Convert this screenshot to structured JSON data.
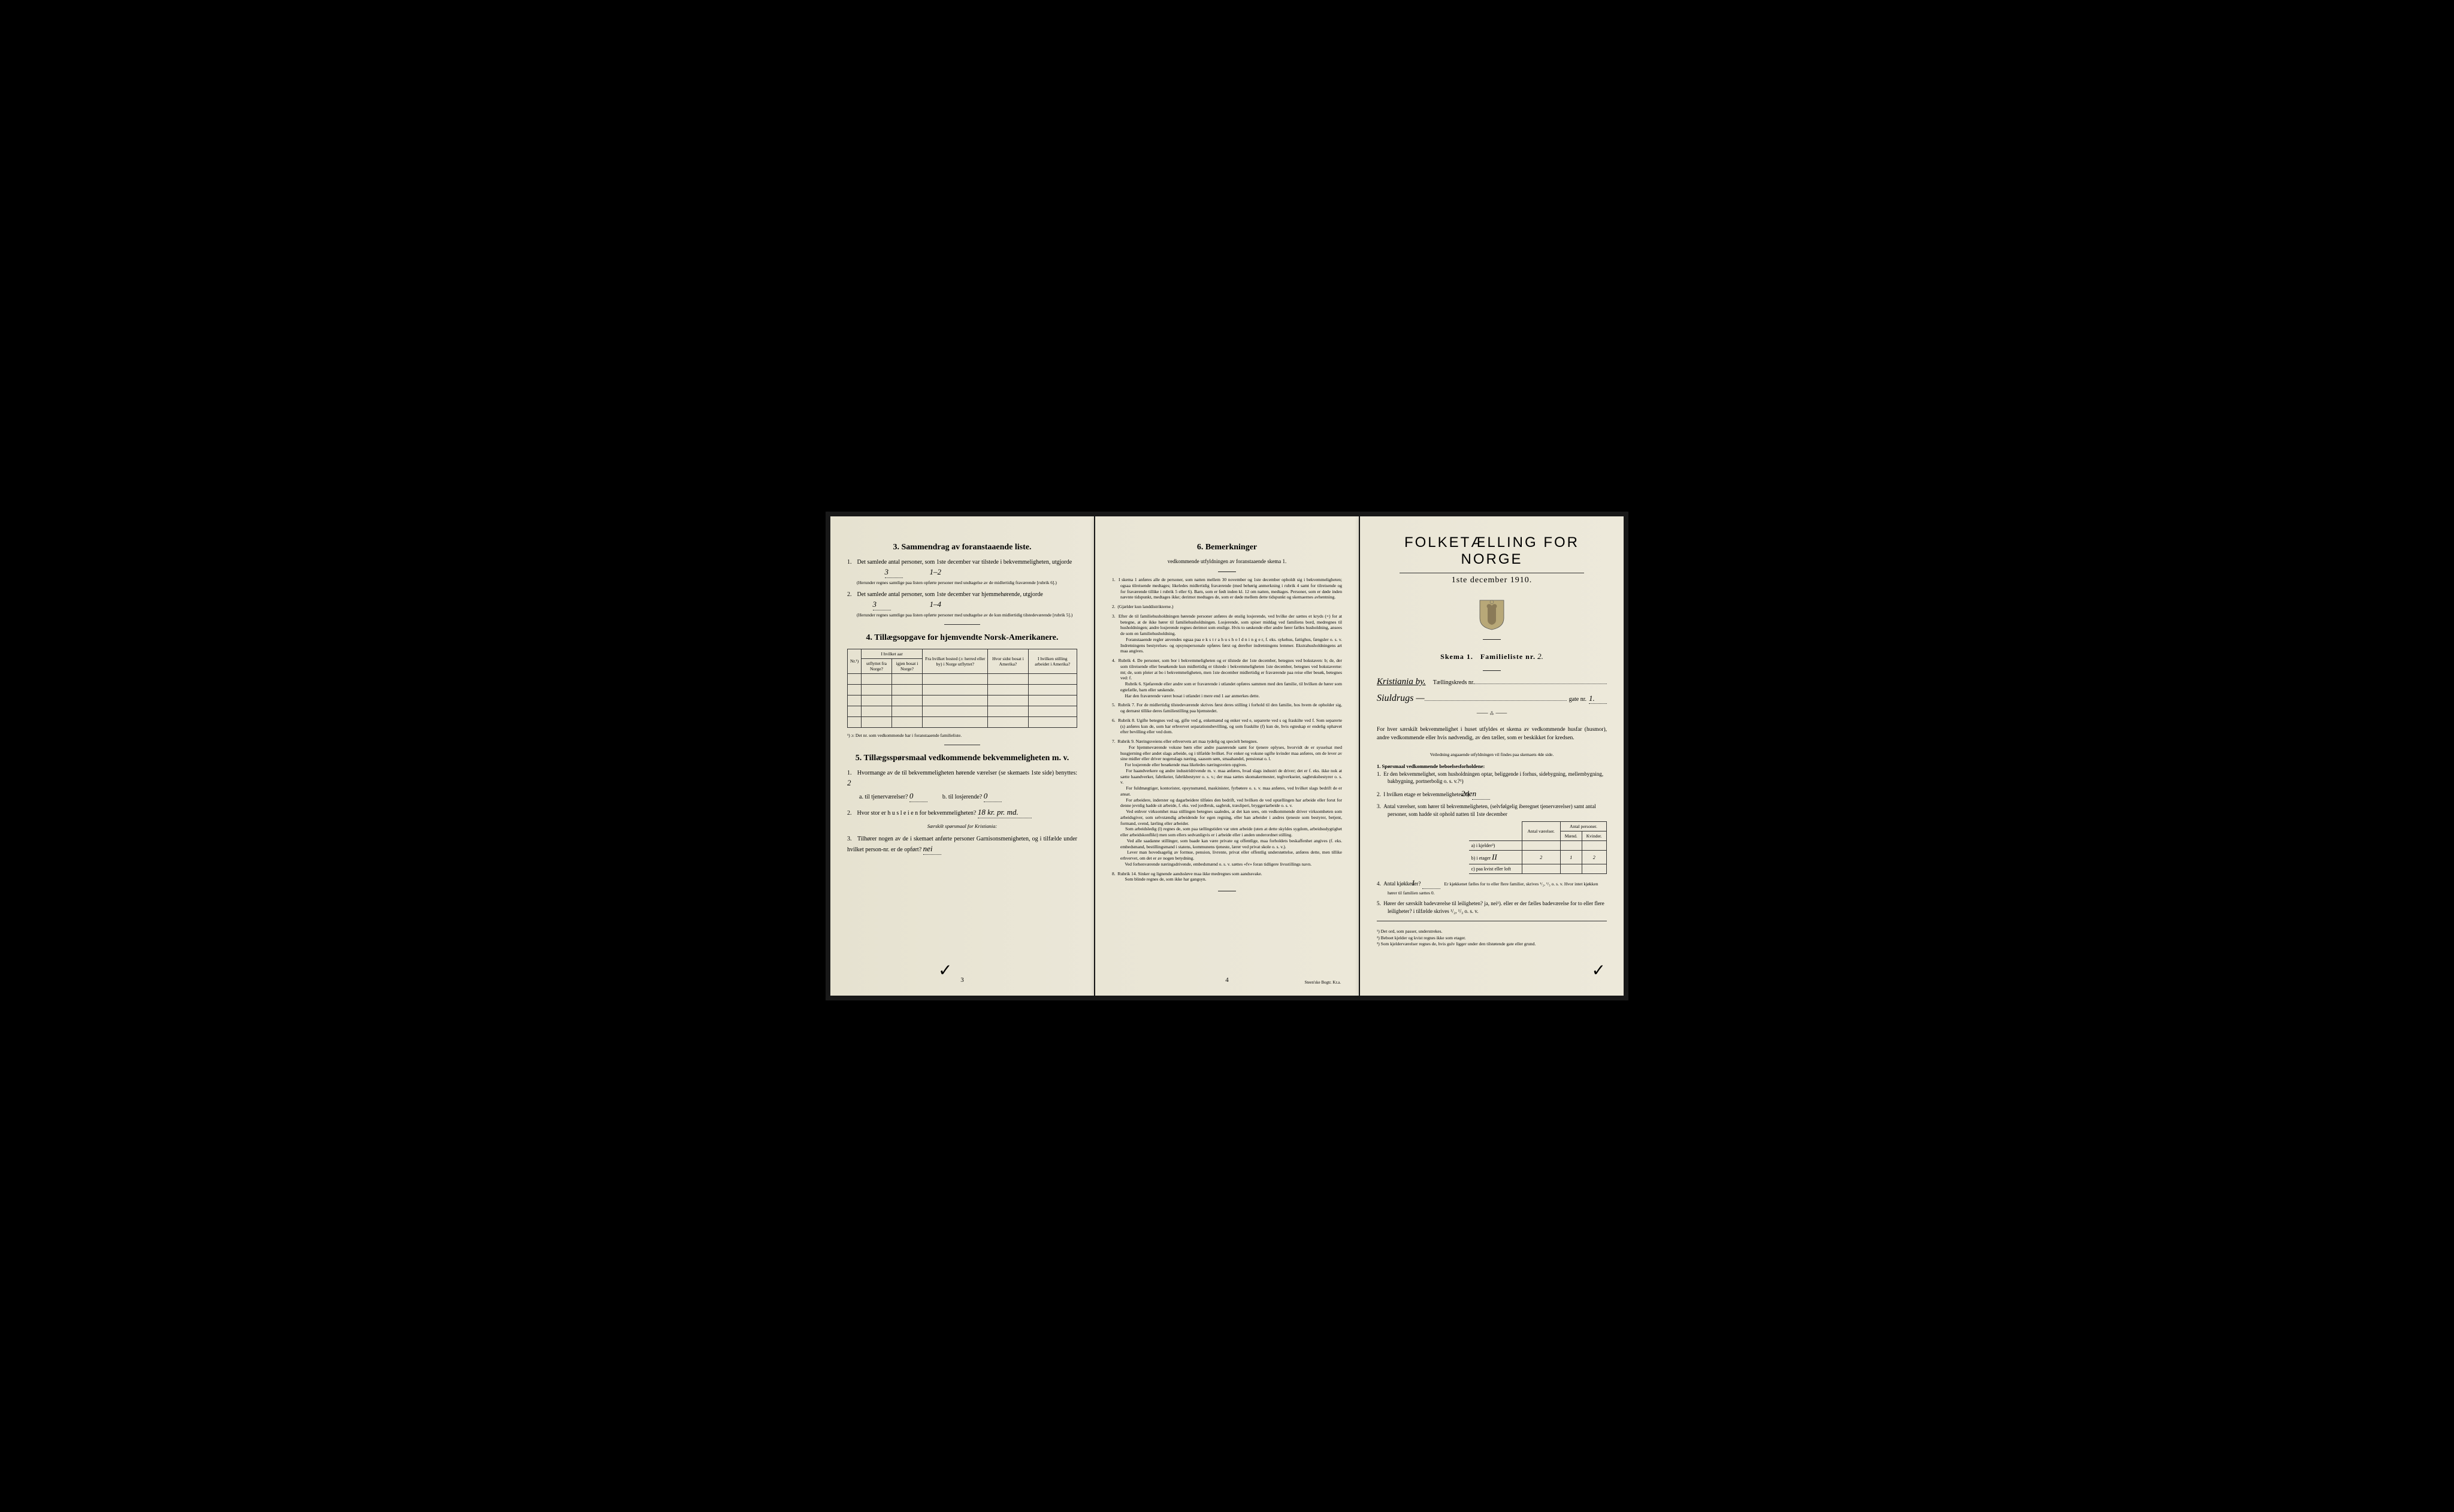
{
  "page_left": {
    "section3": {
      "title": "3.   Sammendrag av foranstaaende liste.",
      "item1": {
        "text": "Det samlede antal personer, som 1ste december var tilstede i bekvemmeligheten, utgjorde",
        "value": "3",
        "annotation": "1–2",
        "sub": "(Herunder regnes samtlige paa listen opførte personer med undtagelse av de midlertidig fraværende [rubrik 6].)"
      },
      "item2": {
        "text": "Det samlede antal personer, som 1ste december var hjemmehørende, utgjorde",
        "value": "3",
        "annotation": "1–4",
        "sub": "(Herunder regnes samtlige paa listen opførte personer med undtagelse av de kun midlertidig tilstedeværende [rubrik 5].)"
      }
    },
    "section4": {
      "title": "4.   Tillægsopgave for hjemvendte Norsk-Amerikanere.",
      "headers": {
        "nr": "Nr.¹)",
        "group1": "I hvilket aar",
        "utflyttet": "utflyttet fra Norge?",
        "igjen": "igjen bosat i Norge?",
        "bosted": "Fra hvilket bosted (ɔ: herred eller by) i Norge utflyttet?",
        "sidst": "Hvor sidst bosat i Amerika?",
        "stilling": "I hvilken stilling arbeidet i Amerika?"
      },
      "footnote": "¹) ɔ: Det nr. som vedkommende har i foranstaaende familieliste."
    },
    "section5": {
      "title": "5.   Tillægsspørsmaal vedkommende bekvemmeligheten m. v.",
      "q1": {
        "text": "Hvormange av de til bekvemmeligheten hørende værelser (se skemaets 1ste side) benyttes:",
        "value": "2",
        "a_label": "a.  til tjenerværelser?",
        "a_value": "0",
        "b_label": "b.  til losjerende?",
        "b_value": "0"
      },
      "q2": {
        "text": "Hvor stor er h u s l e i e n for bekvemmeligheten?",
        "value": "18 kr. pr. md."
      },
      "sub_title": "Særskilt spørsmaal for Kristiania:",
      "q3": {
        "text": "Tilhører nogen av de i skemaet anførte personer Garnisonsmenigheten, og i tilfælde under hvilket person-nr. er de opført?",
        "value": "nei"
      }
    },
    "page_num": "3"
  },
  "page_middle": {
    "section6": {
      "title": "6.   Bemerkninger",
      "subtitle": "vedkommende utfyldningen av foranstaaende skema 1.",
      "items": [
        "I skema 1 anføres alle de personer, som natten mellem 30 november og 1ste december opholdt sig i bekvemmeligheten; ogsaa tilreisende medtages; likeledes midlertidig fraværende (med behørig anmerkning i rubrik 4 samt for tilreisende og for fraværende tillike i rubrik 5 eller 6). Barn, som er født inden kl. 12 om natten, medtages. Personer, som er døde inden nævnte tidspunkt, medtages ikke; derimot medtages de, som er døde mellem dette tidspunkt og skemaernes avhentning.",
        "(Gjælder kun landdistrikterne.)",
        "Efter de til familiehusholdningen hørende personer anføres de enslig losjerende, ved hvilke der sættes et kryds (×) for at betegne, at de ikke hører til familiehusholdningen. Losjerende, som spiser middag ved familiens bord, medregnes til husholdningen; andre losjerende regnes derimot som enslige. Hvis to søskende eller andre fører fælles husholdning, ansees de som en familiehusholdning.\n   Foranstaaende regler anvendes ogsaa paa e k s t r a h u s h o l d n i n g e r, f. eks. sykehus, fattighus, fængsler o. s. v. Indretningens bestyrelses- og opsynspersonale opføres først og derefter indretningens lemmer. Ekstrahusholdningens art maa angives.",
        "Rubrik 4. De personer, som bor i bekvemmeligheten og er tilstede der 1ste december, betegnes ved bokstaven: b; de, der som tilreisende eller besøkende kun midlertidig er tilstede i bekvemmeligheten 1ste december, betegnes ved bokstaverne: mt; de, som pleier at bo i bekvemmeligheten, men 1ste december midlertidig er fraværende paa reise eller besøk, betegnes ved: f.\n   Rubrik 6. Sjøfarende eller andre som er fraværende i utlandet opføres sammen med den familie, til hvilken de hører som egtefælle, barn eller søskende.\n   Har den fraværende været bosat i utlandet i mere end 1 aar anmerkes dette.",
        "Rubrik 7. For de midlertidig tilstedeværende skrives først deres stilling i forhold til den familie, hos hvem de opholder sig, og dernæst tillike deres familiestilling paa hjemstedet.",
        "Rubrik 8. Ugifte betegnes ved ug, gifte ved g, enkemænd og enker ved e, separerte ved s og fraskilte ved f. Som separerte (s) anføres kun de, som har erhvervet separationsbevilling, og som fraskilte (f) kun de, hvis egteskap er endelig ophævet efter bevilling eller ved dom.",
        "Rubrik 9. Næringsveiens eller erhvervets art maa tydelig og specielt betegnes.\n   For hjemmeværende voksne børn eller andre paarørende samt for tjenere oplyses, hvorvidt de er sysselsat med husgjerning eller andet slags arbeide, og i tilfælde hvilket. For enker og voksne ugifte kvinder maa anføres, om de lever av sine midler eller driver nogenslags næring, saasom søm, smaahandel, pensionat o. l.\n   For losjerende eller besøkende maa likeledes næringsveien opgives.\n   For haandverkere og andre industridrivende m. v. maa anføres, hvad slags industri de driver; det er f. eks. ikke nok at sætte haandverker, fabrikeier, fabrikbestyrer o. s. v.; der maa sættes skomakermester, teglverkseier, sagbruksbestyrer o. s. v.\n   For fuldmægtiger, kontorister, opsynsmænd, maskinister, fyrbøtere o. s. v. maa anføres, ved hvilket slags bedrift de er ansat.\n   For arbeidere, inderster og dagarbeidere tilføies den bedrift, ved hvilken de ved optællingen har arbeide eller forut for denne jevnlig hadde sit arbeide, f. eks. ved jordbruk, sagbruk, træsliperi, bryggeriarbeide o. s. v.\n   Ved enhver virksomhet maa stillingen betegnes saaledes, at det kan sees, om vedkommende driver virksomheten som arbeidsgiver, som selvstændig arbeidende for egen regning, eller han arbeider i andres tjeneste som bestyrer, betjent, formand, svend, lærling eller arbeider.\n   Som arbeidsledig (l) regnes de, som paa tællingstiden var uten arbeide (uten at dette skyldes sygdom, arbeidsudygtighet eller arbeidskonflikt) men som ellers sedvanligvis er i arbeide eller i anden underordnet stilling.\n   Ved alle saadanne stillinger, som baade kan være private og offentlige, maa forholdets beskaffenhet angives (f. eks. embedsmand, bestillingsmand i statens, kommunens tjeneste, lærer ved privat skole o. s. v.).\n   Lever man hovedsagelig av formue, pension, livrente, privat eller offentlig understøttelse, anføres dette, men tillike erhvervet, om det er av nogen betydning.\n   Ved forhenværende næringsdrivende, embedsmænd o. s. v. sættes «fv» foran tidligere livsstillings navn.",
        "Rubrik 14. Sinker og lignende aandssløve maa ikke medregnes som aandssvake.\n   Som blinde regnes de, som ikke har gangsyn."
      ]
    },
    "page_num": "4",
    "printer": "Steen'ske Bogtr.  Kr.a."
  },
  "page_right": {
    "main_title": "FOLKETÆLLING FOR NORGE",
    "date": "1ste december 1910.",
    "skema_label": "Skema 1.",
    "famlist_label": "Familieliste nr.",
    "famlist_value": "2.",
    "city_label": "Kristiania by.",
    "kreds_label": "Tællingskreds nr.",
    "street_value": "Siuldrugs —",
    "gate_label": "gate nr.",
    "gate_value": "1.",
    "intro": "For hver særskilt bekvemmelighet i huset utfyldes et skema av vedkommende husfar (husmor), andre vedkommende eller hvis nødvendig, av den tæller, som er beskikket for kredsen.",
    "intro_note": "Veiledning angaaende utfyldningen vil findes paa skemaets 4de side.",
    "section1": {
      "title": "1.  Spørsmaal vedkommende beboelsesforholdene:",
      "q1": "Er den bekvemmelighet, som husholdningen optar, beliggende i forhus, sidebygning, mellembygning, bakbygning, portnerbolig o. s. v.?¹)",
      "q2": "I hvilken etage er bekvemmeligheten?²)",
      "q2_value": "2den",
      "q3": "Antal værelser, som hører til bekvemmeligheten, (selvfølgelig iberegnet tjenerværelser) samt antal personer, som hadde sit ophold natten til 1ste december",
      "table": {
        "h1": "Antal værelser.",
        "h2": "Antal personer.",
        "h2a": "Mænd.",
        "h2b": "Kvinder.",
        "rows": [
          {
            "label": "a) i kjelder³)",
            "v": "",
            "m": "",
            "k": ""
          },
          {
            "label": "b) i etager",
            "etage": "II",
            "v": "2",
            "m": "1",
            "k": "2"
          },
          {
            "label": "c) paa kvist eller loft",
            "v": "",
            "m": "",
            "k": ""
          }
        ]
      },
      "q4": "Antal kjøkkener?",
      "q4_value": "1",
      "q4_sub": "Er kjøkkenet fælles for to eller flere familier, skrives ¹/₂, ¹/₃ o. s. v. Hvor intet kjøkken hører til familien sættes 0.",
      "q5": "Hører der særskilt badeværelse til leiligheten? ja, nei¹). eller er der fælles badeværelse for to eller flere leiligheter? i tilfælde skrives ¹/₂, ¹/₃ o. s. v.",
      "q5_value": "nei"
    },
    "footnotes": [
      "¹) Det ord, som passer, understrekes.",
      "²) Beboet kjelder og kvist regnes ikke som etager.",
      "³) Som kjelderværelser regnes de, hvis gulv ligger under den tilstøtende gate eller grund."
    ]
  }
}
